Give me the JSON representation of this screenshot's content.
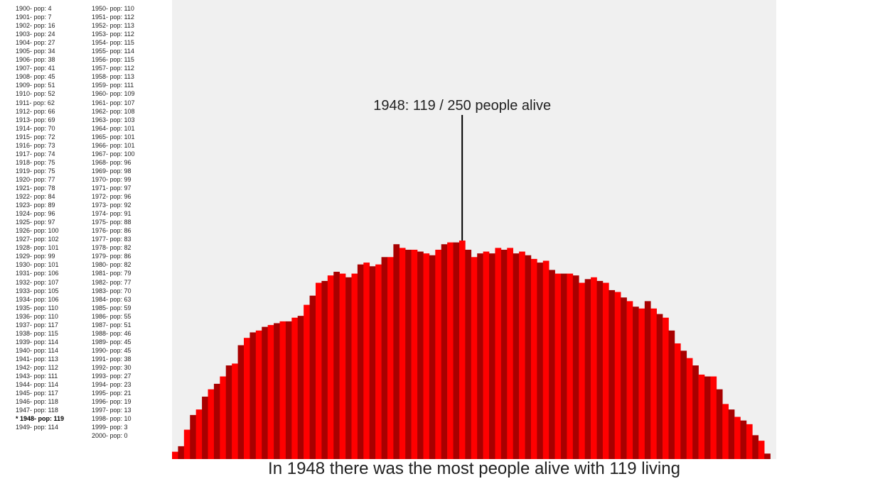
{
  "highlight": {
    "year": 1948,
    "label": "1948: 119 / 250 people alive"
  },
  "caption": "In 1948 there was the most people alive with 119 living",
  "colors": {
    "bar_a": "#ff0000",
    "bar_b": "#a80000",
    "background": "#f0f0f0",
    "pointer": "#000000"
  },
  "chart_data": {
    "type": "bar",
    "x": [
      1900,
      1901,
      1902,
      1903,
      1904,
      1905,
      1906,
      1907,
      1908,
      1909,
      1910,
      1911,
      1912,
      1913,
      1914,
      1915,
      1916,
      1917,
      1918,
      1919,
      1920,
      1921,
      1922,
      1923,
      1924,
      1925,
      1926,
      1927,
      1928,
      1929,
      1930,
      1931,
      1932,
      1933,
      1934,
      1935,
      1936,
      1937,
      1938,
      1939,
      1940,
      1941,
      1942,
      1943,
      1944,
      1945,
      1946,
      1947,
      1948,
      1949,
      1950,
      1951,
      1952,
      1953,
      1954,
      1955,
      1956,
      1957,
      1958,
      1959,
      1960,
      1961,
      1962,
      1963,
      1964,
      1965,
      1966,
      1967,
      1968,
      1969,
      1970,
      1971,
      1972,
      1973,
      1974,
      1975,
      1976,
      1977,
      1978,
      1979,
      1980,
      1981,
      1982,
      1983,
      1984,
      1985,
      1986,
      1987,
      1988,
      1989,
      1990,
      1991,
      1992,
      1993,
      1994,
      1995,
      1996,
      1997,
      1998,
      1999,
      2000
    ],
    "values": [
      4,
      7,
      16,
      24,
      27,
      34,
      38,
      41,
      45,
      51,
      52,
      62,
      66,
      69,
      70,
      72,
      73,
      74,
      75,
      75,
      77,
      78,
      84,
      89,
      96,
      97,
      100,
      102,
      101,
      99,
      101,
      106,
      107,
      105,
      106,
      110,
      110,
      117,
      115,
      114,
      114,
      113,
      112,
      111,
      114,
      117,
      118,
      118,
      119,
      114,
      110,
      112,
      113,
      112,
      115,
      114,
      115,
      112,
      113,
      111,
      109,
      107,
      108,
      103,
      101,
      101,
      101,
      100,
      96,
      98,
      99,
      97,
      96,
      92,
      91,
      88,
      86,
      83,
      82,
      86,
      82,
      79,
      77,
      70,
      63,
      59,
      55,
      51,
      46,
      45,
      45,
      38,
      30,
      27,
      23,
      21,
      19,
      13,
      10,
      3,
      0
    ],
    "max_value": 250,
    "list_labels": [
      "1900- pop: 4",
      "1901- pop: 7",
      "1902- pop: 16",
      "1903- pop: 24",
      "1904- pop: 27",
      "1905- pop: 34",
      "1906- pop: 38",
      "1907- pop: 41",
      "1908- pop: 45",
      "1909- pop: 51",
      "1910- pop: 52",
      "1911- pop: 62",
      "1912- pop: 66",
      "1913- pop: 69",
      "1914- pop: 70",
      "1915- pop: 72",
      "1916- pop: 73",
      "1917- pop: 74",
      "1918- pop: 75",
      "1919- pop: 75",
      "1920- pop: 77",
      "1921- pop: 78",
      "1922- pop: 84",
      "1923- pop: 89",
      "1924- pop: 96",
      "1925- pop: 97",
      "1926- pop: 100",
      "1927- pop: 102",
      "1928- pop: 101",
      "1929- pop: 99",
      "1930- pop: 101",
      "1931- pop: 106",
      "1932- pop: 107",
      "1933- pop: 105",
      "1934- pop: 106",
      "1935- pop: 110",
      "1936- pop: 110",
      "1937- pop: 117",
      "1938- pop: 115",
      "1939- pop: 114",
      "1940- pop: 114",
      "1941- pop: 113",
      "1942- pop: 112",
      "1943- pop: 111",
      "1944- pop: 114",
      "1945- pop: 117",
      "1946- pop: 118",
      "1947- pop: 118",
      "* 1948- pop: 119",
      "1949- pop: 114",
      "1950- pop: 110",
      "1951- pop: 112",
      "1952- pop: 113",
      "1953- pop: 112",
      "1954- pop: 115",
      "1955- pop: 114",
      "1956- pop: 115",
      "1957- pop: 112",
      "1958- pop: 113",
      "1959- pop: 111",
      "1960- pop: 109",
      "1961- pop: 107",
      "1962- pop: 108",
      "1963- pop: 103",
      "1964- pop: 101",
      "1965- pop: 101",
      "1966- pop: 101",
      "1967- pop: 100",
      "1968- pop: 96",
      "1969- pop: 98",
      "1970- pop: 99",
      "1971- pop: 97",
      "1972- pop: 96",
      "1973- pop: 92",
      "1974- pop: 91",
      "1975- pop: 88",
      "1976- pop: 86",
      "1977- pop: 83",
      "1978- pop: 82",
      "1979- pop: 86",
      "1980- pop: 82",
      "1981- pop: 79",
      "1982- pop: 77",
      "1983- pop: 70",
      "1984- pop: 63",
      "1985- pop: 59",
      "1986- pop: 55",
      "1987- pop: 51",
      "1988- pop: 46",
      "1989- pop: 45",
      "1990- pop: 45",
      "1991- pop: 38",
      "1992- pop: 30",
      "1993- pop: 27",
      "1994- pop: 23",
      "1995- pop: 21",
      "1996- pop: 19",
      "1997- pop: 13",
      "1998- pop: 10",
      "1999- pop: 3",
      "2000- pop: 0"
    ]
  }
}
